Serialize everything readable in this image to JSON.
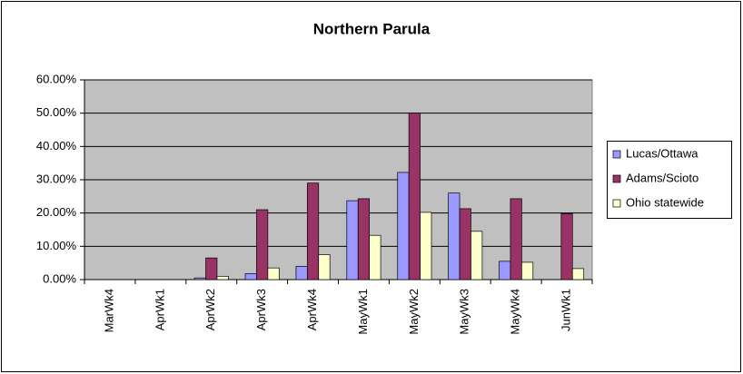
{
  "chart_data": {
    "type": "bar",
    "title": "Northern Parula",
    "categories": [
      "MarWk4",
      "AprWk1",
      "AprWk2",
      "AprWk3",
      "AprWk4",
      "MayWk1",
      "MayWk2",
      "MayWk3",
      "MayWk4",
      "JunWk1"
    ],
    "series": [
      {
        "name": "Lucas/Ottawa",
        "color": "#9999ff",
        "values": [
          0,
          0,
          0.5,
          1.8,
          4,
          23.7,
          32.2,
          26,
          5.5,
          0
        ]
      },
      {
        "name": "Adams/Scioto",
        "color": "#993366",
        "values": [
          0,
          0,
          6.5,
          21,
          29,
          24.3,
          50,
          21.3,
          24.3,
          19.8
        ]
      },
      {
        "name": "Ohio statewide",
        "color": "#ffffcc",
        "values": [
          0,
          0,
          1,
          3.5,
          7.5,
          13.3,
          20.2,
          14.5,
          5.2,
          3.3
        ]
      }
    ],
    "ylim": [
      0,
      60
    ],
    "yticks": [
      {
        "value": 0,
        "label": "0.00%"
      },
      {
        "value": 10,
        "label": "10.00%"
      },
      {
        "value": 20,
        "label": "20.00%"
      },
      {
        "value": 30,
        "label": "30.00%"
      },
      {
        "value": 40,
        "label": "40.00%"
      },
      {
        "value": 50,
        "label": "50.00%"
      },
      {
        "value": 60,
        "label": "60.00%"
      }
    ],
    "grid": true,
    "legend": "right"
  }
}
